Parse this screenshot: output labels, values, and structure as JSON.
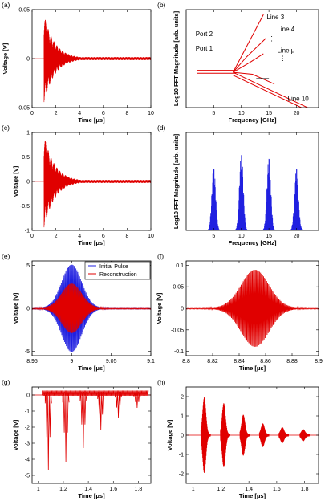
{
  "chart_data": [
    {
      "id": "a",
      "type": "line",
      "panel_label": "(a)",
      "xlabel": "Time [μs]",
      "ylabel": "Voltage [V]",
      "xlim": [
        0,
        10
      ],
      "ylim": [
        -0.05,
        0.05
      ],
      "xticks": [
        0,
        2,
        4,
        6,
        8,
        10
      ],
      "yticks": [
        {
          "value": -0.05,
          "label": "-0.05"
        },
        {
          "value": 0,
          "label": "0"
        },
        {
          "value": 0.05,
          "label": "0.05"
        }
      ],
      "series": [
        {
          "color": "#e00000",
          "envelope": {
            "start": 1,
            "peak": 0.045,
            "decay": 0.9,
            "end": 10,
            "floor": 0.0015
          }
        }
      ]
    },
    {
      "id": "b",
      "type": "line",
      "panel_label": "(b)",
      "xlabel": "Frequency [GHz]",
      "ylabel": "Log10 FFT Magnitude [arb. units]",
      "xlim": [
        0,
        24
      ],
      "ylim": [
        0,
        10
      ],
      "xticks": [
        5,
        10,
        15,
        20
      ],
      "yticks": [],
      "annotations": [
        "Port 2",
        "Port 1",
        "Line 3",
        "Line 4",
        "Line μ",
        "Line 10",
        "⋮",
        "⋮"
      ],
      "series": [
        {
          "color": "#e00000",
          "points": [
            [
              2,
              3.8
            ],
            [
              9,
              3.8
            ]
          ]
        },
        {
          "color": "#e00000",
          "points": [
            [
              2,
              3.5
            ],
            [
              9,
              3.5
            ]
          ]
        },
        {
          "color": "#e00000",
          "points": [
            [
              8.5,
              3.6
            ],
            [
              11,
              5.2
            ],
            [
              14.5,
              7.1
            ]
          ]
        },
        {
          "color": "#e00000",
          "points": [
            [
              8.5,
              3.6
            ],
            [
              11.5,
              4.6
            ],
            [
              14,
              5.5
            ]
          ]
        },
        {
          "color": "#e00000",
          "points": [
            [
              8.5,
              3.6
            ],
            [
              12,
              3.4
            ],
            [
              16,
              2.4
            ]
          ]
        },
        {
          "color": "#e00000",
          "points": [
            [
              8.5,
              3.6
            ],
            [
              23.5,
              -0.4
            ]
          ]
        },
        {
          "color": "#e00000",
          "points": [
            [
              8.5,
              3.3
            ],
            [
              23.5,
              -0.7
            ]
          ]
        },
        {
          "color": "#e00000",
          "points": [
            [
              8.5,
              3.6
            ],
            [
              14,
              9.5
            ]
          ]
        }
      ]
    },
    {
      "id": "c",
      "type": "line",
      "panel_label": "(c)",
      "xlabel": "Time [μs]",
      "ylabel": "Voltage [V]",
      "xlim": [
        0,
        10
      ],
      "ylim": [
        -1,
        1
      ],
      "xticks": [
        0,
        2,
        4,
        6,
        8,
        10
      ],
      "yticks": [
        {
          "value": -1,
          "label": "-1"
        },
        {
          "value": -0.5,
          "label": "-0.5"
        },
        {
          "value": 0,
          "label": "0"
        },
        {
          "value": 0.5,
          "label": "0.5"
        },
        {
          "value": 1,
          "label": "1"
        }
      ],
      "series": [
        {
          "color": "#e00000",
          "envelope": {
            "start": 1,
            "peak": 0.95,
            "decay": 0.9,
            "end": 10,
            "floor": 0.03
          }
        }
      ]
    },
    {
      "id": "d",
      "type": "bar",
      "panel_label": "(d)",
      "xlabel": "Frequency [GHz]",
      "ylabel": "Log10 FFT Magnitude [arb. units]",
      "xlim": [
        0,
        24
      ],
      "ylim": [
        0,
        10
      ],
      "xticks": [
        5,
        10,
        15,
        20
      ],
      "yticks": [],
      "series": [
        {
          "color": "#2020e0",
          "peaks": [
            {
              "center": 5,
              "height": 6.5
            },
            {
              "center": 10,
              "height": 8.0
            },
            {
              "center": 15,
              "height": 7.6
            },
            {
              "center": 20,
              "height": 6.5
            }
          ]
        }
      ]
    },
    {
      "id": "e",
      "type": "line",
      "panel_label": "(e)",
      "xlabel": "Time [μs]",
      "ylabel": "Voltage [V]",
      "xlim": [
        8.95,
        9.1
      ],
      "ylim": [
        -5.5,
        5.5
      ],
      "xticks": [
        8.95,
        9,
        9.05,
        9.1
      ],
      "yticks": [
        {
          "value": -5,
          "label": "-5"
        },
        {
          "value": 0,
          "label": "0"
        },
        {
          "value": 5,
          "label": "5"
        }
      ],
      "legend": {
        "position": "top-right",
        "entries": [
          "Initial Pulse",
          "Reconstruction"
        ]
      },
      "series": [
        {
          "name": "Initial Pulse",
          "color": "#2020e0",
          "gauss": {
            "center": 9.0,
            "width": 0.0125,
            "peak": 5.0
          }
        },
        {
          "name": "Reconstruction",
          "color": "#e00000",
          "gauss": {
            "center": 9.0,
            "width": 0.0125,
            "peak": 2.8
          }
        }
      ]
    },
    {
      "id": "f",
      "type": "line",
      "panel_label": "(f)",
      "xlabel": "Time [μs]",
      "ylabel": "Voltage [V]",
      "xlim": [
        8.8,
        8.9
      ],
      "ylim": [
        -0.11,
        0.11
      ],
      "xticks": [
        8.8,
        8.82,
        8.84,
        8.86,
        8.88,
        8.9
      ],
      "yticks": [
        {
          "value": -0.1,
          "label": "-0.1"
        },
        {
          "value": -0.05,
          "label": "-0.05"
        },
        {
          "value": 0,
          "label": "0"
        },
        {
          "value": 0.05,
          "label": "0.05"
        },
        {
          "value": 0.1,
          "label": "0.1"
        }
      ],
      "series": [
        {
          "color": "#e00000",
          "gauss": {
            "center": 8.852,
            "width": 0.0105,
            "peak": 0.088
          }
        }
      ]
    },
    {
      "id": "g",
      "type": "line",
      "panel_label": "(g)",
      "xlabel": "Time [μs]",
      "ylabel": "Voltage [V]",
      "xlim": [
        0.95,
        1.9
      ],
      "ylim": [
        -5.5,
        0.5
      ],
      "xticks": [
        1,
        1.2,
        1.4,
        1.6,
        1.8
      ],
      "yticks": [
        {
          "value": -5,
          "label": "-5"
        },
        {
          "value": -4,
          "label": "-4"
        },
        {
          "value": -3,
          "label": "-3"
        },
        {
          "value": -2,
          "label": "-2"
        },
        {
          "value": -1,
          "label": "-1"
        },
        {
          "value": 0,
          "label": "0"
        }
      ],
      "series": [
        {
          "color": "#e00000",
          "spikes": [
            [
              1.08,
              -4.7
            ],
            [
              1.22,
              -4.2
            ],
            [
              1.36,
              -3.3
            ],
            [
              1.5,
              -2.2
            ],
            [
              1.64,
              -1.4
            ],
            [
              1.79,
              -0.8
            ]
          ]
        }
      ]
    },
    {
      "id": "h",
      "type": "line",
      "panel_label": "(h)",
      "xlabel": "Time [μs]",
      "ylabel": "Voltage [V]",
      "xlim": [
        0.95,
        1.9
      ],
      "ylim": [
        -2.5,
        2.5
      ],
      "xticks": [
        1,
        1.2,
        1.4,
        1.6,
        1.8
      ],
      "yticks": [
        {
          "value": -2,
          "label": "-2"
        },
        {
          "value": -1,
          "label": "-1"
        },
        {
          "value": 0,
          "label": "0"
        },
        {
          "value": 1,
          "label": "1"
        },
        {
          "value": 2,
          "label": "2"
        }
      ],
      "series": [
        {
          "color": "#e00000",
          "bursts": [
            [
              1.08,
              1.9
            ],
            [
              1.22,
              1.6
            ],
            [
              1.36,
              1.0
            ],
            [
              1.5,
              0.55
            ],
            [
              1.64,
              0.35
            ],
            [
              1.79,
              0.25
            ]
          ]
        }
      ]
    }
  ]
}
